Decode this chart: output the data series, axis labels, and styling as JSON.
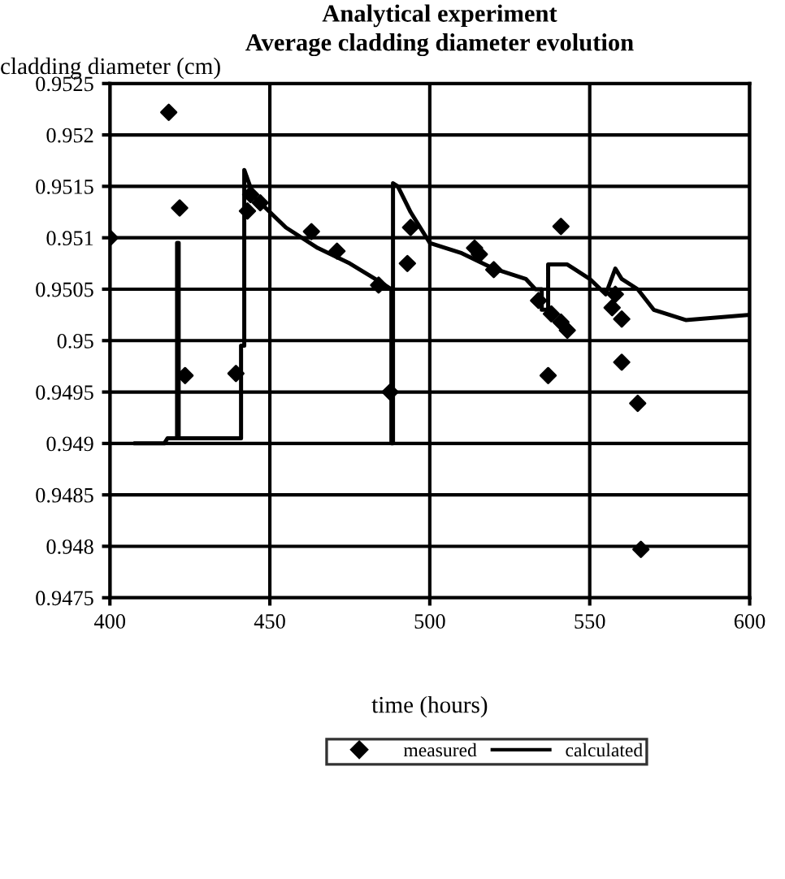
{
  "chart_data": {
    "type": "scatter",
    "title": "Analytical experiment",
    "subtitle": "Average cladding diameter evolution",
    "xlabel": "time (hours)",
    "ylabel": "cladding diameter (cm)",
    "xlim": [
      400,
      600
    ],
    "xticks": [
      400,
      450,
      500,
      550,
      600
    ],
    "ylim": [
      0.9475,
      0.9525
    ],
    "yticks": [
      0.9475,
      0.948,
      0.9485,
      0.949,
      0.9495,
      0.95,
      0.9505,
      0.951,
      0.9515,
      0.952,
      0.9525
    ],
    "grid": true,
    "legend": "bottom",
    "series": [
      {
        "name": "measured",
        "marker": "diamond",
        "color": "#000000",
        "x": [
          400,
          418.4,
          421.8,
          423.5,
          439.4,
          443,
          444,
          447,
          463,
          471,
          484,
          487.6,
          493,
          494,
          514,
          515.5,
          520,
          534,
          537,
          538,
          541,
          541,
          543,
          557,
          558,
          560,
          560,
          565,
          566
        ],
        "values": [
          0.951,
          0.95222,
          0.95129,
          0.94966,
          0.94968,
          0.95126,
          0.95142,
          0.95134,
          0.95106,
          0.95087,
          0.95054,
          0.9495,
          0.95075,
          0.9511,
          0.9509,
          0.95084,
          0.95069,
          0.95039,
          0.94966,
          0.95026,
          0.95018,
          0.95111,
          0.9501,
          0.95032,
          0.95045,
          0.95021,
          0.94979,
          0.94939,
          0.94797
        ]
      },
      {
        "name": "calculated",
        "type": "line",
        "marker": "none",
        "line_style": "solid",
        "color": "#000000",
        "x": [
          408,
          417,
          418,
          421,
          421,
          421.5,
          421.5,
          441,
          441,
          442,
          442,
          445,
          455,
          465,
          475,
          484,
          488,
          488,
          488.5,
          488.5,
          490,
          494,
          500,
          510,
          520,
          530,
          533,
          535,
          535,
          537,
          537,
          543,
          545,
          550,
          555,
          558,
          560,
          565,
          570,
          580,
          600
        ],
        "values": [
          0.949,
          0.949,
          0.94905,
          0.94905,
          0.95095,
          0.95095,
          0.94905,
          0.94905,
          0.94995,
          0.94995,
          0.95166,
          0.9514,
          0.9511,
          0.9509,
          0.95075,
          0.95058,
          0.9505,
          0.949,
          0.949,
          0.95153,
          0.9515,
          0.95125,
          0.95095,
          0.95085,
          0.9507,
          0.9506,
          0.9505,
          0.9505,
          0.9503,
          0.9503,
          0.95074,
          0.95074,
          0.9507,
          0.9506,
          0.95045,
          0.9507,
          0.9506,
          0.9505,
          0.9503,
          0.9502,
          0.95025
        ]
      }
    ]
  }
}
